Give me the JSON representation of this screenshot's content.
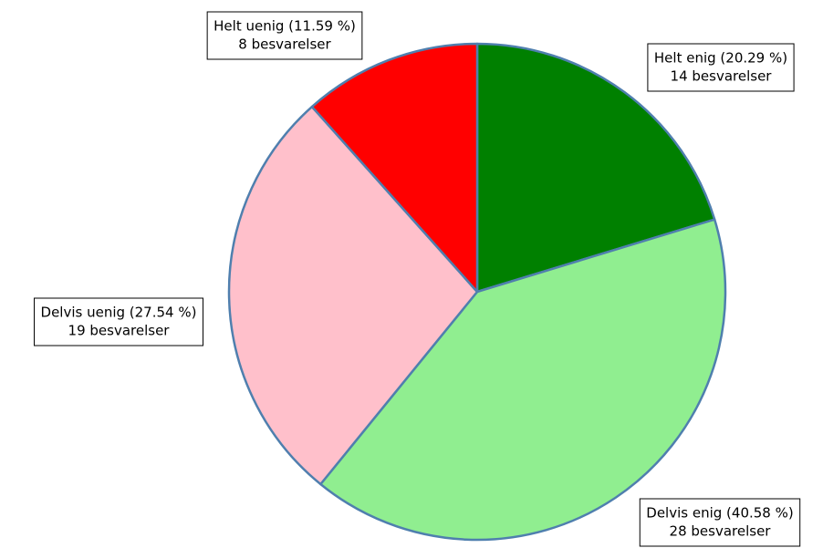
{
  "chart_data": {
    "type": "pie",
    "categories": [
      "Helt enig (20.29 %)",
      "Delvis enig (40.58 %)",
      "Delvis uenig (27.54 %)",
      "Helt uenig (11.59 %)"
    ],
    "values": [
      14,
      28,
      19,
      8
    ],
    "value_labels": [
      "14 besvarelser",
      "28 besvarelser",
      "19 besvarelser",
      "8 besvarelser"
    ],
    "colors": [
      "#008000",
      "#90ee90",
      "#ffc0cb",
      "#ff0000"
    ],
    "stroke": "#4f7fae"
  }
}
